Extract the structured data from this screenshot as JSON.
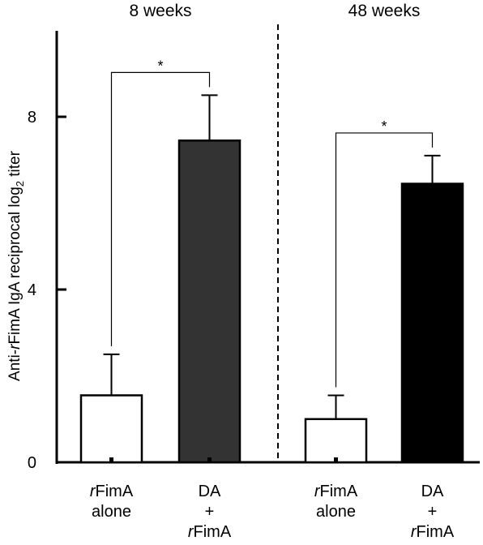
{
  "chart_data": {
    "type": "bar",
    "ylabel_parts": [
      "Anti-",
      "r",
      "FimA IgA reciprocal log",
      "2",
      " titer"
    ],
    "ylim": [
      0,
      10
    ],
    "yticks": [
      0,
      4,
      8
    ],
    "groups": [
      {
        "title": "8 weeks",
        "bars": [
          0,
          1
        ]
      },
      {
        "title": "48 weeks",
        "bars": [
          2,
          3
        ]
      }
    ],
    "bars": [
      {
        "value": 1.55,
        "error": 0.95,
        "color": "#ffffff",
        "label_lines": [
          [
            "r",
            "FimA"
          ],
          [
            "",
            "alone"
          ]
        ]
      },
      {
        "value": 7.45,
        "error": 1.05,
        "color": "#333333",
        "label_lines": [
          [
            "",
            "DA"
          ],
          [
            "",
            "+"
          ],
          [
            "r",
            "FimA"
          ]
        ]
      },
      {
        "value": 1.0,
        "error": 0.55,
        "color": "#ffffff",
        "label_lines": [
          [
            "r",
            "FimA"
          ],
          [
            "",
            "alone"
          ]
        ]
      },
      {
        "value": 6.45,
        "error": 0.65,
        "color": "#000000",
        "label_lines": [
          [
            "",
            "DA"
          ],
          [
            "",
            "+"
          ],
          [
            "r",
            "FimA"
          ]
        ]
      }
    ],
    "significance": [
      {
        "from": 0,
        "to": 1,
        "label": "*"
      },
      {
        "from": 2,
        "to": 3,
        "label": "*"
      }
    ]
  }
}
